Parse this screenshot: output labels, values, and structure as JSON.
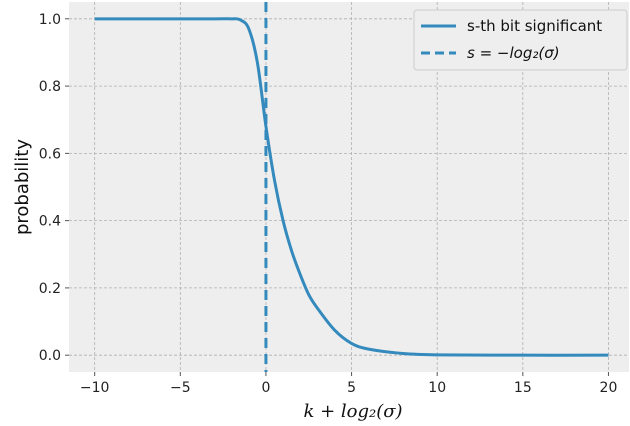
{
  "chart_data": {
    "type": "line",
    "xlabel": "k + log₂(σ)",
    "ylabel": "probability",
    "xlim": [
      -11.5,
      21.2
    ],
    "ylim": [
      -0.05,
      1.05
    ],
    "xticks": [
      -10,
      -5,
      0,
      5,
      10,
      15,
      20
    ],
    "xtick_labels": [
      "−10",
      "−5",
      "0",
      "5",
      "10",
      "15",
      "20"
    ],
    "yticks": [
      0.0,
      0.2,
      0.4,
      0.6,
      0.8,
      1.0
    ],
    "ytick_labels": [
      "0.0",
      "0.2",
      "0.4",
      "0.6",
      "0.8",
      "1.0"
    ],
    "grid": true,
    "legend_position": "top-right",
    "colors": {
      "series": "#348abd",
      "background": "#eeeeee",
      "grid": "#b0b0b0"
    },
    "series": [
      {
        "name": "s-th bit significant",
        "style": "solid",
        "x": [
          -10,
          -6,
          -3,
          -2,
          -1.5,
          -1,
          -0.5,
          0,
          0.5,
          1,
          1.5,
          2,
          2.5,
          3,
          4,
          5,
          6,
          8,
          10,
          15,
          20
        ],
        "y": [
          1.0,
          1.0,
          1.0,
          1.0,
          0.997,
          0.97,
          0.87,
          0.68,
          0.52,
          0.4,
          0.31,
          0.24,
          0.18,
          0.14,
          0.075,
          0.035,
          0.018,
          0.005,
          0.001,
          0.0,
          0.0
        ]
      },
      {
        "name": "s = −log₂(σ)",
        "style": "dashed",
        "x_value": 0
      }
    ]
  }
}
